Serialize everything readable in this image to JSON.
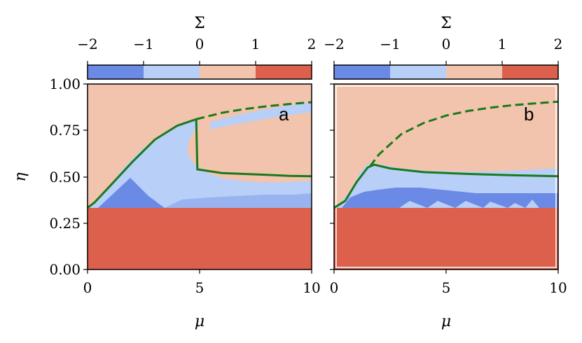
{
  "chart_data": [
    {
      "type": "heatmap",
      "panel_label": "a",
      "xlabel": "μ",
      "ylabel": "η",
      "colorbar_label": "Σ",
      "xlim": [
        0,
        10
      ],
      "ylim": [
        0,
        1
      ],
      "x_ticks": [
        "0",
        "5",
        "10"
      ],
      "y_ticks": [
        "0.00",
        "0.25",
        "0.50",
        "0.75",
        "1.00"
      ],
      "colorbar_ticks": [
        "−2",
        "−1",
        "0",
        "1",
        "2"
      ],
      "colorbar_levels": [
        {
          "range": [
            -2,
            -1
          ],
          "color": "#6a8ae6"
        },
        {
          "range": [
            -1,
            0
          ],
          "color": "#b8cff7"
        },
        {
          "range": [
            0,
            1
          ],
          "color": "#f2c4ad"
        },
        {
          "range": [
            1,
            2
          ],
          "color": "#dd604c"
        }
      ],
      "regions": [
        {
          "sigma_level": 2,
          "description_level": "η < 0.333",
          "color": "#dd604c"
        },
        {
          "sigma_level": 1,
          "color": "#f2c4ad"
        }
      ],
      "lines": [
        {
          "style": "solid",
          "color": "#1a7a1a",
          "points": [
            [
              0,
              0.333
            ],
            [
              0.3,
              0.36
            ],
            [
              1,
              0.45
            ],
            [
              2,
              0.58
            ],
            [
              3,
              0.7
            ],
            [
              4,
              0.775
            ],
            [
              4.85,
              0.81
            ]
          ]
        },
        {
          "style": "solid",
          "color": "#1a7a1a",
          "points": [
            [
              4.85,
              0.81
            ],
            [
              4.9,
              0.54
            ],
            [
              6,
              0.52
            ],
            [
              7,
              0.515
            ],
            [
              8,
              0.51
            ],
            [
              9,
              0.505
            ],
            [
              10,
              0.503
            ]
          ]
        },
        {
          "style": "dashed",
          "color": "#1a7a1a",
          "points": [
            [
              4.85,
              0.81
            ],
            [
              6,
              0.845
            ],
            [
              7,
              0.865
            ],
            [
              8,
              0.88
            ],
            [
              9,
              0.892
            ],
            [
              10,
              0.902
            ]
          ]
        }
      ]
    },
    {
      "type": "heatmap",
      "panel_label": "b",
      "xlabel": "μ",
      "ylabel": "",
      "colorbar_label": "Σ",
      "xlim": [
        0,
        10
      ],
      "ylim": [
        0,
        1
      ],
      "x_ticks": [
        "0",
        "5",
        "10"
      ],
      "colorbar_ticks": [
        "−2",
        "−1",
        "0",
        "1",
        "2"
      ],
      "lines": [
        {
          "style": "solid",
          "color": "#1a7a1a",
          "points": [
            [
              0,
              0.333
            ],
            [
              0.5,
              0.37
            ],
            [
              1,
              0.47
            ],
            [
              1.5,
              0.55
            ],
            [
              1.8,
              0.565
            ],
            [
              2.5,
              0.545
            ],
            [
              4,
              0.525
            ],
            [
              6,
              0.515
            ],
            [
              8,
              0.508
            ],
            [
              10,
              0.503
            ]
          ]
        },
        {
          "style": "dashed",
          "color": "#1a7a1a",
          "points": [
            [
              1.6,
              0.555
            ],
            [
              2,
              0.62
            ],
            [
              3,
              0.73
            ],
            [
              4,
              0.79
            ],
            [
              5,
              0.83
            ],
            [
              6,
              0.855
            ],
            [
              7,
              0.873
            ],
            [
              8,
              0.886
            ],
            [
              9,
              0.896
            ],
            [
              10,
              0.905
            ]
          ]
        }
      ]
    }
  ]
}
